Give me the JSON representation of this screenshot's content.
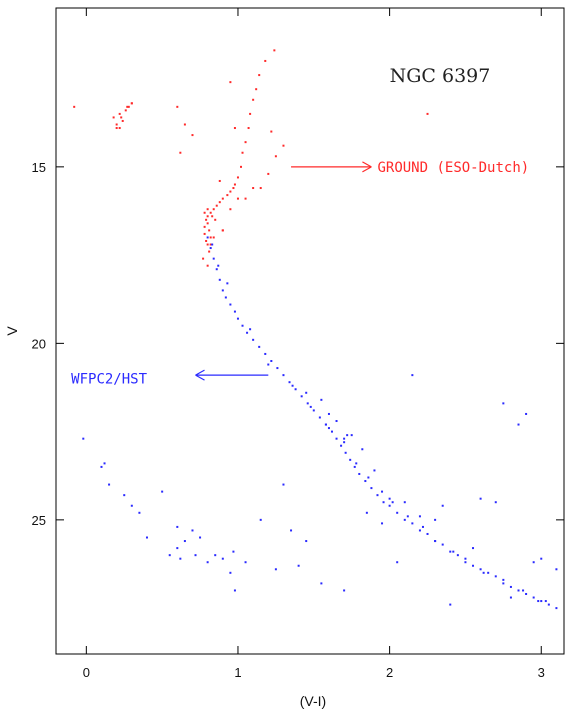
{
  "chart_data": {
    "type": "scatter",
    "title": "NGC 6397",
    "xlabel": "(V-I)",
    "ylabel": "V",
    "xlim": [
      -0.2,
      3.15
    ],
    "ylim": [
      28.8,
      10.5
    ],
    "y_inverted": true,
    "grid": false,
    "x_ticks": [
      0,
      1,
      2,
      3
    ],
    "x_tick_labels": [
      "0",
      "1",
      "2",
      "3"
    ],
    "y_ticks": [
      15,
      20,
      25
    ],
    "y_tick_labels": [
      "15",
      "20",
      "25"
    ],
    "annotations": [
      {
        "text": "GROUND (ESO-Dutch)",
        "color": "#ff2a2a",
        "arrow_from": [
          1.35,
          15.0
        ],
        "arrow_to": [
          1.88,
          15.0
        ],
        "text_at": [
          1.92,
          15.0
        ]
      },
      {
        "text": "WFPC2/HST",
        "color": "#2a2aff",
        "arrow_from": [
          1.2,
          20.9
        ],
        "arrow_to": [
          0.72,
          20.9
        ],
        "text_at": [
          -0.1,
          21.0
        ]
      }
    ],
    "series": [
      {
        "name": "GROUND (ESO-Dutch)",
        "color": "#ff2a2a",
        "x": [
          1.24,
          1.18,
          1.14,
          1.12,
          1.1,
          1.08,
          1.07,
          1.05,
          1.03,
          1.02,
          1.0,
          0.98,
          0.97,
          0.95,
          0.93,
          0.9,
          0.88,
          0.86,
          0.84,
          0.82,
          0.8,
          0.79,
          0.78,
          0.78,
          0.79,
          0.8,
          0.8,
          0.81,
          0.82,
          0.83,
          1.2,
          1.25,
          1.3,
          1.1,
          1.0,
          0.95,
          0.85,
          0.9,
          0.82,
          0.78,
          0.81,
          0.77,
          0.8,
          0.84,
          0.8,
          -0.08,
          0.2,
          0.22,
          0.24,
          0.26,
          0.28,
          0.3,
          0.2,
          0.23,
          0.27,
          0.3,
          0.18,
          0.22,
          0.6,
          0.95,
          0.98,
          0.62,
          0.65,
          0.7,
          1.15,
          1.22,
          1.05,
          2.25,
          0.9,
          0.88
        ],
        "y": [
          11.7,
          12.0,
          12.4,
          12.8,
          13.1,
          13.5,
          13.9,
          14.3,
          14.6,
          15.0,
          15.3,
          15.5,
          15.6,
          15.7,
          15.8,
          15.9,
          16.0,
          16.1,
          16.2,
          16.3,
          16.4,
          16.5,
          16.7,
          16.9,
          17.1,
          17.2,
          16.6,
          16.8,
          17.0,
          16.4,
          15.2,
          14.7,
          14.4,
          15.6,
          15.9,
          16.2,
          16.5,
          16.8,
          17.2,
          16.3,
          17.4,
          17.6,
          17.8,
          17.0,
          16.2,
          13.3,
          13.8,
          13.5,
          13.7,
          13.4,
          13.3,
          13.2,
          13.9,
          13.6,
          13.3,
          13.2,
          13.6,
          13.9,
          13.3,
          12.6,
          13.9,
          14.6,
          13.8,
          14.1,
          15.6,
          14.0,
          15.9,
          13.5,
          16.8,
          15.4
        ]
      },
      {
        "name": "WFPC2/HST",
        "color": "#2a2aff",
        "x": [
          0.8,
          0.82,
          0.84,
          0.86,
          0.88,
          0.9,
          0.92,
          0.95,
          0.98,
          1.0,
          1.03,
          1.06,
          1.1,
          1.14,
          1.18,
          1.22,
          1.26,
          1.3,
          1.34,
          1.38,
          1.42,
          1.46,
          1.5,
          1.54,
          1.58,
          1.62,
          1.65,
          1.68,
          1.71,
          1.74,
          1.77,
          1.8,
          1.84,
          1.88,
          1.92,
          1.96,
          2.0,
          2.05,
          2.1,
          2.15,
          2.2,
          2.25,
          2.3,
          2.35,
          2.4,
          2.45,
          2.5,
          2.55,
          2.6,
          2.65,
          2.7,
          2.75,
          2.8,
          2.85,
          2.9,
          2.95,
          3.0,
          3.05,
          3.1,
          0.83,
          0.87,
          0.93,
          1.08,
          1.2,
          1.36,
          1.48,
          1.6,
          1.7,
          1.78,
          1.86,
          1.95,
          2.02,
          2.12,
          2.22,
          2.3,
          2.42,
          2.5,
          2.62,
          2.75,
          2.88,
          2.98,
          1.55,
          1.65,
          1.75,
          1.82,
          1.6,
          1.72,
          1.9,
          2.1,
          2.3,
          1.45,
          1.58,
          1.7,
          2.0,
          2.2,
          2.55,
          -0.02,
          0.1,
          0.12,
          0.15,
          0.25,
          0.3,
          0.35,
          0.4,
          0.5,
          0.6,
          0.62,
          0.65,
          0.7,
          0.72,
          0.75,
          0.8,
          0.85,
          0.9,
          0.95,
          0.97,
          1.05,
          1.15,
          1.25,
          1.35,
          1.4,
          1.3,
          1.45,
          1.55,
          1.7,
          1.85,
          1.95,
          2.4,
          2.75,
          2.85,
          2.9,
          2.95,
          3.03,
          3.1,
          2.05,
          2.15,
          2.35,
          2.6,
          2.7,
          2.8,
          3.0,
          0.98,
          0.6,
          0.55
        ],
        "y": [
          17.0,
          17.3,
          17.6,
          17.9,
          18.2,
          18.5,
          18.7,
          18.9,
          19.1,
          19.3,
          19.5,
          19.7,
          19.9,
          20.1,
          20.3,
          20.5,
          20.7,
          20.9,
          21.1,
          21.3,
          21.5,
          21.7,
          21.9,
          22.1,
          22.3,
          22.5,
          22.7,
          22.9,
          23.1,
          23.3,
          23.5,
          23.7,
          23.9,
          24.1,
          24.3,
          24.5,
          24.6,
          24.8,
          25.0,
          25.1,
          25.3,
          25.4,
          25.6,
          25.7,
          25.9,
          26.0,
          26.1,
          26.3,
          26.4,
          26.5,
          26.6,
          26.8,
          26.9,
          27.0,
          27.1,
          27.2,
          27.3,
          27.4,
          27.5,
          17.2,
          17.8,
          18.3,
          19.6,
          20.6,
          21.2,
          21.8,
          22.4,
          22.8,
          23.4,
          23.8,
          24.2,
          24.5,
          24.9,
          25.2,
          25.6,
          25.9,
          26.2,
          26.5,
          26.7,
          27.0,
          27.3,
          21.6,
          22.2,
          22.6,
          23.0,
          22.0,
          22.6,
          23.6,
          24.5,
          25.0,
          21.4,
          22.3,
          22.7,
          24.4,
          24.9,
          25.8,
          22.7,
          23.5,
          23.4,
          24.0,
          24.3,
          24.6,
          24.8,
          25.5,
          24.2,
          25.8,
          26.1,
          25.6,
          25.3,
          26.0,
          25.5,
          26.2,
          26.0,
          26.1,
          26.5,
          25.9,
          26.2,
          25.0,
          26.4,
          25.3,
          26.3,
          24.0,
          25.6,
          26.8,
          27.0,
          24.8,
          25.1,
          27.4,
          21.7,
          22.3,
          22.0,
          26.2,
          27.3,
          26.4,
          26.2,
          20.9,
          24.6,
          24.4,
          24.5,
          27.2,
          26.1,
          27.0,
          25.2,
          26.0
        ]
      }
    ]
  }
}
